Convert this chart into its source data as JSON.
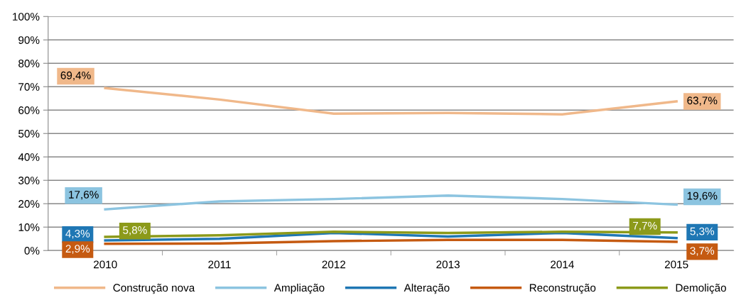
{
  "chart_data": {
    "type": "line",
    "categories": [
      "2010",
      "2011",
      "2012",
      "2013",
      "2014",
      "2015"
    ],
    "series": [
      {
        "name": "Construção nova",
        "color": "#f0b88a",
        "values": [
          69.4,
          64.5,
          58.5,
          58.8,
          58.2,
          63.7
        ],
        "value_labels": [
          "69,4%",
          null,
          null,
          null,
          null,
          "63,7%"
        ]
      },
      {
        "name": "Ampliação",
        "color": "#8cc4e0",
        "values": [
          17.6,
          21.0,
          22.0,
          23.5,
          22.0,
          19.6
        ],
        "value_labels": [
          "17,6%",
          null,
          null,
          null,
          null,
          "19,6%"
        ]
      },
      {
        "name": "Alteração",
        "color": "#1f77b4",
        "values": [
          4.3,
          5.0,
          7.5,
          6.0,
          7.5,
          5.3
        ],
        "value_labels": [
          "4,3%",
          null,
          null,
          null,
          null,
          "5,3%"
        ]
      },
      {
        "name": "Reconstrução",
        "color": "#c55a11",
        "values": [
          2.9,
          3.0,
          4.0,
          4.5,
          4.5,
          3.7
        ],
        "value_labels": [
          "2,9%",
          null,
          null,
          null,
          null,
          "3,7%"
        ]
      },
      {
        "name": "Demolição",
        "color": "#8c9a1a",
        "values": [
          5.8,
          6.5,
          8.0,
          7.5,
          8.0,
          7.7
        ],
        "value_labels": [
          "5,8%",
          null,
          null,
          null,
          null,
          "7,7%"
        ]
      }
    ],
    "ylim": [
      0,
      100
    ],
    "yticks": [
      {
        "value": 0,
        "label": "0%"
      },
      {
        "value": 10,
        "label": "10%"
      },
      {
        "value": 20,
        "label": "20%"
      },
      {
        "value": 30,
        "label": "30%"
      },
      {
        "value": 40,
        "label": "40%"
      },
      {
        "value": 50,
        "label": "50%"
      },
      {
        "value": 60,
        "label": "60%"
      },
      {
        "value": 70,
        "label": "70%"
      },
      {
        "value": 80,
        "label": "80%"
      },
      {
        "value": 90,
        "label": "90%"
      },
      {
        "value": 100,
        "label": "100%"
      }
    ],
    "grid": "y",
    "legend": "bottom",
    "marker": "none",
    "line_style": "solid"
  }
}
